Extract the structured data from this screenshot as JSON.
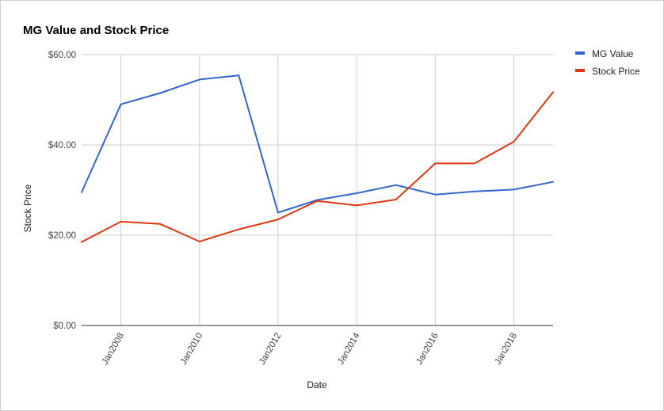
{
  "chart_data": {
    "type": "line",
    "title": "MG Value and Stock Price",
    "xlabel": "Date",
    "ylabel": "Stock Price",
    "x": [
      2007,
      2008,
      2009,
      2010,
      2011,
      2012,
      2013,
      2014,
      2015,
      2016,
      2017,
      2018,
      2019
    ],
    "x_ticks": [
      {
        "value": 2008,
        "label": "Jan2008"
      },
      {
        "value": 2010,
        "label": "Jan2010"
      },
      {
        "value": 2012,
        "label": "Jan2012"
      },
      {
        "value": 2014,
        "label": "Jan2014"
      },
      {
        "value": 2016,
        "label": "Jan2016"
      },
      {
        "value": 2018,
        "label": "Jan2018"
      }
    ],
    "xlim": [
      2007,
      2019
    ],
    "y_ticks": [
      {
        "value": 0,
        "label": "$0.00"
      },
      {
        "value": 20,
        "label": "$20.00"
      },
      {
        "value": 40,
        "label": "$40.00"
      },
      {
        "value": 60,
        "label": "$60.00"
      }
    ],
    "ylim": [
      0,
      60
    ],
    "grid": true,
    "legend_position": "right",
    "series": [
      {
        "name": "MG Value",
        "color": "#3366cc",
        "values": [
          29.5,
          49,
          51.5,
          54.5,
          55.4,
          25,
          27.8,
          29.3,
          31.1,
          29,
          29.7,
          30.1,
          31.8
        ]
      },
      {
        "name": "Stock Price",
        "color": "#dc3912",
        "values": [
          18.5,
          23,
          22.5,
          18.6,
          21.3,
          23.5,
          27.6,
          26.6,
          27.9,
          35.9,
          35.9,
          40.7,
          51.7
        ]
      }
    ]
  }
}
